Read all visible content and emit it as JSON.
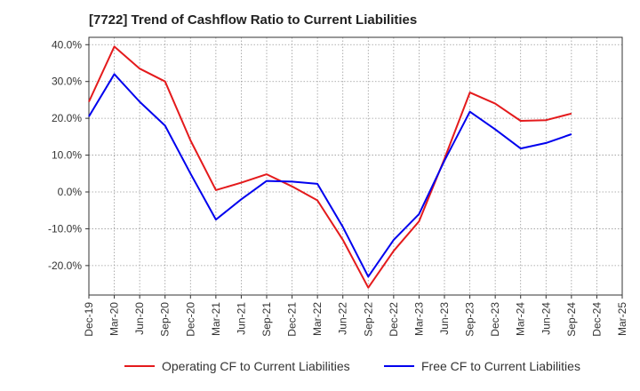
{
  "chart_data": {
    "type": "line",
    "title": "[7722]  Trend of Cashflow Ratio to Current Liabilities",
    "x": [
      "Dec-19",
      "Mar-20",
      "Jun-20",
      "Sep-20",
      "Dec-20",
      "Mar-21",
      "Jun-21",
      "Sep-21",
      "Dec-21",
      "Mar-22",
      "Jun-22",
      "Sep-22",
      "Dec-22",
      "Mar-23",
      "Jun-23",
      "Sep-23",
      "Dec-23",
      "Mar-24",
      "Jun-24",
      "Sep-24",
      "Dec-24",
      "Mar-25"
    ],
    "series": [
      {
        "name": "Operating CF to Current Liabilities",
        "color": "#e41a1c",
        "values": [
          24.5,
          39.5,
          33.5,
          30.0,
          14.0,
          0.5,
          2.5,
          4.8,
          1.5,
          -2.3,
          -13.0,
          -26.0,
          -16.0,
          -8.0,
          9.0,
          27.0,
          24.0,
          19.3,
          19.5,
          21.3,
          null,
          null
        ]
      },
      {
        "name": "Free CF to Current Liabilities",
        "color": "#0000ee",
        "values": [
          20.5,
          32.0,
          24.5,
          18.0,
          5.0,
          -7.5,
          -2.0,
          3.0,
          2.8,
          2.2,
          -9.5,
          -23.0,
          -13.0,
          -6.0,
          8.5,
          21.8,
          17.0,
          11.8,
          13.3,
          15.7,
          null,
          null
        ]
      }
    ],
    "y_ticks": [
      "40.0%",
      "30.0%",
      "20.0%",
      "10.0%",
      "0.0%",
      "-10.0%",
      "-20.0%"
    ],
    "y_tick_values": [
      40,
      30,
      20,
      10,
      0,
      -10,
      -20
    ],
    "ylim": [
      -28,
      42
    ],
    "grid": true,
    "legend_position": "bottom"
  }
}
